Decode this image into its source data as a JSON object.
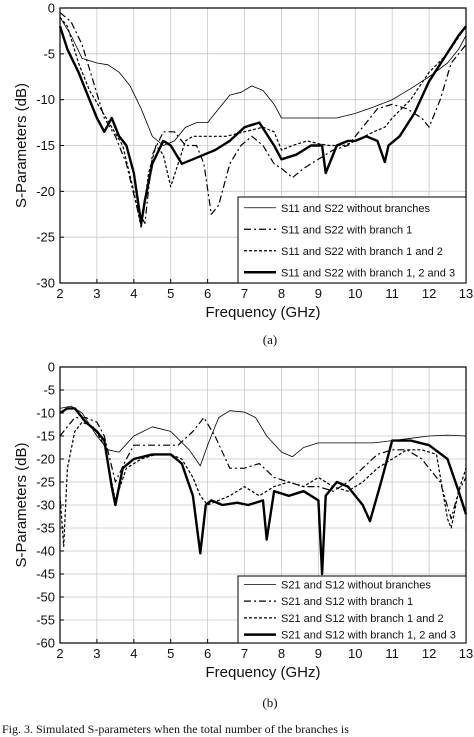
{
  "caption": "Fig. 3.  Simulated S-parameters when the total number of the branches is",
  "chart_data": [
    {
      "id": "a",
      "type": "line",
      "subtitle": "(a)",
      "xlabel": "Frequency (GHz)",
      "ylabel": "S-Parameters (dB)",
      "xlim": [
        2,
        13
      ],
      "ylim": [
        -30,
        0
      ],
      "xticks": [
        "2",
        "3",
        "4",
        "5",
        "6",
        "7",
        "8",
        "9",
        "10",
        "11",
        "12",
        "13"
      ],
      "yticks": [
        "0",
        "-5",
        "-10",
        "-15",
        "-20",
        "-25",
        "-30"
      ],
      "grid": true,
      "legend_position": "bottom-right",
      "series": [
        {
          "name": "S11 and S22 without branches",
          "style": "thin",
          "x": [
            2,
            2.3,
            2.6,
            3,
            3.3,
            3.6,
            3.9,
            4.2,
            4.5,
            4.8,
            5.1,
            5.4,
            5.7,
            6,
            6.3,
            6.6,
            6.9,
            7.2,
            7.5,
            7.8,
            8,
            8.5,
            9,
            9.5,
            10,
            10.5,
            11,
            11.5,
            12,
            12.5,
            12.8,
            13
          ],
          "y": [
            -1,
            -3,
            -5.5,
            -6,
            -6.2,
            -7,
            -8.5,
            -11,
            -14,
            -15,
            -14.5,
            -13,
            -12.5,
            -12.5,
            -11,
            -9.5,
            -9.2,
            -8.5,
            -9,
            -10.5,
            -12,
            -12,
            -12,
            -12,
            -11.5,
            -10.8,
            -10,
            -8.8,
            -7.5,
            -6,
            -4.5,
            -3
          ]
        },
        {
          "name": "S11 and S22 with branch 1",
          "style": "dashdot",
          "x": [
            2,
            2.3,
            2.6,
            2.9,
            3.2,
            3.5,
            3.8,
            4.1,
            4.3,
            4.5,
            4.8,
            5.1,
            5.4,
            5.7,
            5.9,
            6.1,
            6.3,
            6.6,
            6.9,
            7.2,
            7.5,
            7.8,
            8,
            8.3,
            8.6,
            9,
            9.4,
            9.8,
            10.2,
            10.6,
            11,
            11.4,
            11.8,
            12,
            12.3,
            12.6,
            13
          ],
          "y": [
            -0.5,
            -1.5,
            -4,
            -8,
            -12,
            -14,
            -17,
            -22,
            -23.5,
            -16,
            -13.5,
            -13.5,
            -15,
            -15,
            -17,
            -22.5,
            -21.5,
            -17,
            -15,
            -14,
            -15,
            -17,
            -17.5,
            -18.5,
            -17.5,
            -16.5,
            -15.5,
            -15,
            -13,
            -11,
            -10.5,
            -11,
            -12,
            -13,
            -10,
            -6,
            -4
          ]
        },
        {
          "name": "S11 and S22 with branch 1 and 2",
          "style": "dashed",
          "x": [
            2,
            2.2,
            2.5,
            2.8,
            3.1,
            3.4,
            3.7,
            4,
            4.2,
            4.4,
            4.6,
            4.8,
            5,
            5.2,
            5.4,
            5.6,
            5.8,
            6,
            6.5,
            7,
            7.5,
            7.8,
            8,
            8.3,
            8.7,
            9,
            9.3,
            9.7,
            10,
            10.5,
            10.8,
            11,
            11.5,
            12,
            12.5,
            13
          ],
          "y": [
            -1,
            -2,
            -6,
            -9,
            -11,
            -13,
            -15,
            -20,
            -24,
            -18,
            -15,
            -16,
            -19.5,
            -17,
            -14.5,
            -14,
            -14,
            -14,
            -14,
            -13.5,
            -13,
            -13.5,
            -15.5,
            -15,
            -14.5,
            -14.8,
            -15,
            -15,
            -14.5,
            -13.5,
            -13,
            -12,
            -10,
            -7,
            -5,
            -2
          ]
        },
        {
          "name": "S11 and S22 with branch 1, 2 and 3",
          "style": "thick",
          "x": [
            2,
            2.2,
            2.5,
            2.8,
            3,
            3.2,
            3.4,
            3.6,
            3.8,
            4,
            4.2,
            4.3,
            4.5,
            4.8,
            5,
            5.3,
            5.6,
            5.9,
            6.2,
            6.6,
            7,
            7.4,
            7.8,
            8,
            8.4,
            8.8,
            9.1,
            9.2,
            9.5,
            9.8,
            10,
            10.3,
            10.6,
            10.8,
            10.9,
            11.2,
            11.6,
            12,
            12.4,
            12.8,
            13
          ],
          "y": [
            -2,
            -4.5,
            -7,
            -10,
            -12,
            -13.5,
            -12,
            -14,
            -15,
            -18,
            -23.5,
            -21,
            -17,
            -14.5,
            -15,
            -17,
            -16.5,
            -16,
            -15.5,
            -14.5,
            -13,
            -12.5,
            -15,
            -16.5,
            -16,
            -15,
            -15,
            -18,
            -15,
            -14.5,
            -14.5,
            -14,
            -14.5,
            -16.8,
            -15,
            -14,
            -11.5,
            -8,
            -5.5,
            -3,
            -2
          ]
        }
      ],
      "legend": [
        "S11 and S22 without branches",
        "S11 and S22 with branch 1",
        "S11 and S22 with branch 1 and 2",
        "S11 and S22 with branch 1, 2 and 3"
      ]
    },
    {
      "id": "b",
      "type": "line",
      "subtitle": "(b)",
      "xlabel": "Frequency (GHz)",
      "ylabel": "S-Parameters (dB)",
      "xlim": [
        2,
        13
      ],
      "ylim": [
        -60,
        0
      ],
      "xticks": [
        "2",
        "3",
        "4",
        "5",
        "6",
        "7",
        "8",
        "9",
        "10",
        "11",
        "12",
        "13"
      ],
      "yticks": [
        "0",
        "-5",
        "-10",
        "-15",
        "-20",
        "-25",
        "-30",
        "-35",
        "-40",
        "-45",
        "-50",
        "-55",
        "-60"
      ],
      "grid": true,
      "legend_position": "bottom-right",
      "series": [
        {
          "name": "S21 and S12 without branches",
          "style": "thin",
          "x": [
            2,
            2.3,
            2.6,
            3,
            3.3,
            3.6,
            4,
            4.5,
            5,
            5.5,
            5.8,
            6,
            6.3,
            6.6,
            7,
            7.3,
            7.6,
            8,
            8.3,
            8.6,
            9,
            9.5,
            10,
            10.5,
            11,
            11.5,
            12,
            12.5,
            13
          ],
          "y": [
            -9,
            -8.5,
            -10,
            -15,
            -18,
            -18.5,
            -15,
            -13,
            -14,
            -18,
            -21.5,
            -17,
            -11,
            -9.5,
            -9.8,
            -11,
            -15,
            -18.5,
            -19.5,
            -17.5,
            -16.5,
            -16.5,
            -16.5,
            -16.5,
            -16,
            -15.5,
            -15,
            -14.8,
            -15
          ]
        },
        {
          "name": "S21 and S12 with branch 1",
          "style": "dashdot",
          "x": [
            2,
            2.2,
            2.4,
            2.7,
            3,
            3.2,
            3.5,
            3.8,
            4,
            4.4,
            4.8,
            5.2,
            5.6,
            5.9,
            6.2,
            6.6,
            7,
            7.4,
            7.8,
            8.2,
            8.6,
            9,
            9.4,
            9.8,
            10.2,
            10.6,
            11,
            11.4,
            11.8,
            12,
            12.3,
            12.6,
            12.8,
            13
          ],
          "y": [
            -15,
            -13,
            -11,
            -11,
            -12,
            -15,
            -25,
            -20,
            -17,
            -17,
            -17,
            -17,
            -14,
            -11,
            -15,
            -22,
            -22,
            -21,
            -24,
            -25,
            -26,
            -26,
            -27,
            -25,
            -22,
            -19,
            -18,
            -18,
            -20,
            -22,
            -25,
            -33,
            -27,
            -24
          ]
        },
        {
          "name": "S21 and S12 with branch 1 and 2",
          "style": "dashed",
          "x": [
            2,
            2.1,
            2.2,
            2.4,
            2.6,
            2.9,
            3.2,
            3.5,
            3.8,
            4.2,
            4.6,
            5,
            5.3,
            5.6,
            5.8,
            6,
            6.3,
            6.6,
            7,
            7.4,
            7.8,
            8.2,
            8.6,
            9,
            9.4,
            9.8,
            10.2,
            10.6,
            11,
            11.4,
            11.8,
            12.2,
            12.5,
            12.6,
            12.8,
            13
          ],
          "y": [
            -28,
            -39,
            -22,
            -14,
            -12,
            -13,
            -17,
            -29,
            -22,
            -20,
            -19,
            -19,
            -20,
            -24,
            -28,
            -30,
            -29,
            -28,
            -26,
            -28,
            -26,
            -25,
            -26,
            -24,
            -26,
            -27,
            -25,
            -22,
            -20,
            -18,
            -18,
            -19,
            -33,
            -35,
            -27,
            -22
          ]
        },
        {
          "name": "S21 and S12 with branch 1, 2 and 3",
          "style": "thick",
          "x": [
            2,
            2.2,
            2.4,
            2.7,
            3,
            3.2,
            3.4,
            3.5,
            3.7,
            4,
            4.5,
            5,
            5.3,
            5.6,
            5.8,
            5.95,
            6.1,
            6.4,
            6.8,
            7.1,
            7.5,
            7.6,
            7.8,
            8.2,
            8.6,
            9,
            9.1,
            9.2,
            9.5,
            9.8,
            10.2,
            10.4,
            10.7,
            11,
            11.5,
            12,
            12.5,
            12.8,
            13
          ],
          "y": [
            -10,
            -9,
            -9,
            -12,
            -14,
            -16,
            -26,
            -30,
            -22,
            -20,
            -19,
            -19,
            -21,
            -28,
            -40.5,
            -30,
            -29,
            -30,
            -29.5,
            -30,
            -29,
            -37.5,
            -27,
            -28,
            -27,
            -29,
            -45,
            -28,
            -25,
            -26,
            -30,
            -33.5,
            -25,
            -16,
            -16,
            -17,
            -20,
            -27,
            -32
          ]
        }
      ],
      "legend": [
        "S21 and S12 without branches",
        "S21 and S12 with branch 1",
        "S21 and S12 with branch 1 and 2",
        "S21 and S12 with branch 1, 2 and 3"
      ]
    }
  ]
}
